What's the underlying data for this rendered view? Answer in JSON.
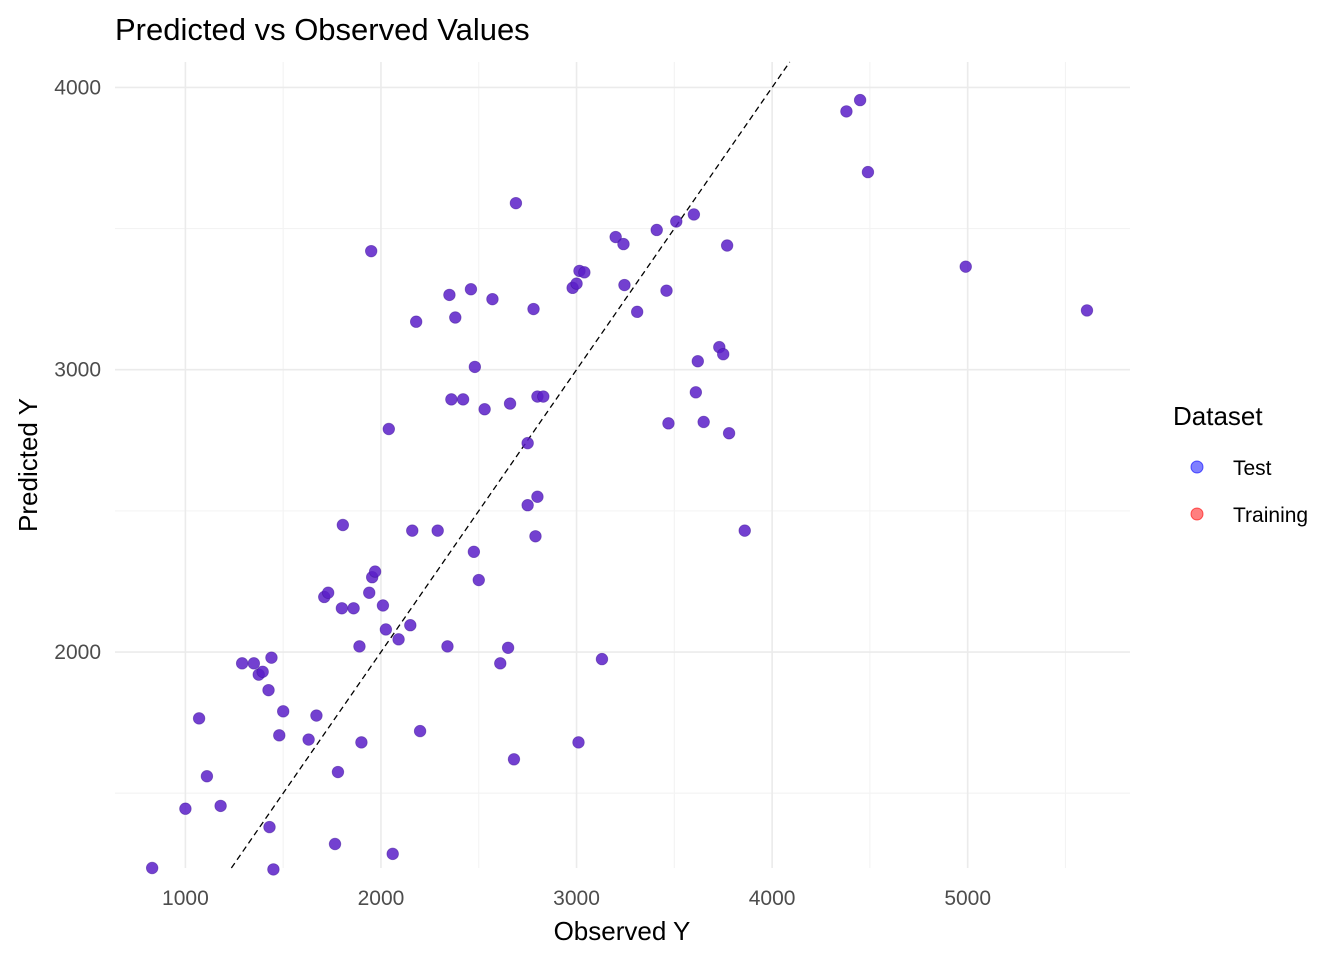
{
  "chart_data": {
    "type": "scatter",
    "title": "Predicted vs Observed Values",
    "xlabel": "Observed Y",
    "ylabel": "Predicted Y",
    "xlim": [
      640,
      5830
    ],
    "ylim": [
      1235,
      4090
    ],
    "x_ticks": [
      1000,
      2000,
      3000,
      4000,
      5000
    ],
    "y_ticks": [
      2000,
      3000,
      4000
    ],
    "x_tick_labels": [
      "1000",
      "2000",
      "3000",
      "4000",
      "5000"
    ],
    "y_tick_labels": [
      "2000",
      "3000",
      "4000"
    ],
    "grid": true,
    "reference_line": {
      "type": "identity",
      "style": "dashed",
      "color": "#000000"
    },
    "legend": {
      "title": "Dataset",
      "position": "right",
      "entries": [
        {
          "label": "Test",
          "color": "#0000ff"
        },
        {
          "label": "Training",
          "color": "#ff0000"
        }
      ]
    },
    "point_color": "#5a1fc8",
    "series": [
      {
        "x": [
          830,
          1000,
          1070,
          1110,
          1180,
          1290,
          1350,
          1375,
          1395,
          1425,
          1430,
          1440,
          1450,
          1480,
          1500,
          1630,
          1670,
          1710,
          1730,
          1765,
          1780,
          1800,
          1805,
          1860,
          1890,
          1900,
          1940,
          1950,
          1955,
          1970,
          2010,
          2025,
          2040,
          2060,
          2090,
          2150,
          2160,
          2180,
          2200,
          2290,
          2340,
          2350,
          2360,
          2380,
          2420,
          2460,
          2475,
          2480,
          2500,
          2530,
          2570,
          2610,
          2650,
          2660,
          2680,
          2690,
          2750,
          2750,
          2780,
          2790,
          2800,
          2800,
          2830,
          2980,
          3000,
          3010,
          3015,
          3040,
          3130,
          3200,
          3240,
          3245,
          3310,
          3410,
          3460,
          3470,
          3510,
          3600,
          3610,
          3620,
          3650,
          3730,
          3750,
          3770,
          3780,
          3860,
          4380,
          4450,
          4490,
          4990,
          5610
        ],
        "y": [
          1235,
          1445,
          1765,
          1560,
          1455,
          1960,
          1960,
          1920,
          1930,
          1865,
          1380,
          1980,
          1230,
          1705,
          1790,
          1690,
          1775,
          2195,
          2210,
          1320,
          1575,
          2155,
          2450,
          2155,
          2020,
          1680,
          2210,
          3420,
          2265,
          2285,
          2165,
          2080,
          2790,
          1285,
          2045,
          2095,
          2430,
          3170,
          1720,
          2430,
          2020,
          3265,
          2895,
          3185,
          2895,
          3285,
          2355,
          3010,
          2255,
          2860,
          3250,
          1960,
          2015,
          2880,
          1620,
          3590,
          2520,
          2740,
          3215,
          2410,
          2550,
          2905,
          2905,
          3290,
          3305,
          1680,
          3350,
          3345,
          1975,
          3470,
          3445,
          3300,
          3205,
          3495,
          3280,
          2810,
          3525,
          3550,
          2920,
          3030,
          2815,
          3080,
          3055,
          3440,
          2775,
          2430,
          3915,
          3955,
          3700,
          3365,
          3210
        ]
      }
    ]
  }
}
